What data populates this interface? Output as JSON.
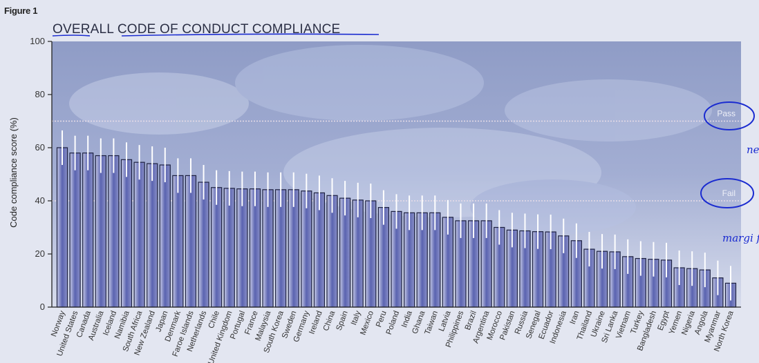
{
  "figure_label": "Figure 1",
  "title": "OVERALL CODE OF CONDUCT COMPLIANCE",
  "annotations": {
    "pass_note": "ne p",
    "fail_note": "margi fail"
  },
  "colors": {
    "bar": "#5a63b0",
    "bar_edge": "#1c2040",
    "error_bar": "#ffffff",
    "threshold_line": "#e8dde8",
    "ink": "#1a2bd0"
  },
  "chart_data": {
    "type": "bar",
    "title": "OVERALL CODE OF CONDUCT COMPLIANCE",
    "xlabel": "",
    "ylabel": "Code compliance score (%)",
    "ylim": [
      0,
      100
    ],
    "yticks": [
      0,
      20,
      40,
      60,
      80,
      100
    ],
    "grid": false,
    "error_bars": "approx ±7",
    "thresholds": [
      {
        "label": "Pass",
        "value": 70
      },
      {
        "label": "Fail",
        "value": 40
      }
    ],
    "categories": [
      "Norway",
      "United States",
      "Canada",
      "Australia",
      "Iceland",
      "Namibia",
      "South Africa",
      "New Zealand",
      "Japan",
      "Denmark",
      "Faroe Islands",
      "Netherlands",
      "Chile",
      "United Kingdom",
      "Portugal",
      "France",
      "Malaysia",
      "South Korea",
      "Sweden",
      "Germany",
      "Ireland",
      "China",
      "Spain",
      "Italy",
      "Mexico",
      "Peru",
      "Poland",
      "India",
      "Ghana",
      "Taiwan",
      "Latvia",
      "Philippines",
      "Brazil",
      "Argentina",
      "Morocco",
      "Pakistan",
      "Russia",
      "Senegal",
      "Ecuador",
      "Indonesia",
      "Iran",
      "Thailand",
      "Ukraine",
      "Sri Lanka",
      "Vietnam",
      "Turkey",
      "Bangladesh",
      "Egypt",
      "Yemen",
      "Nigeria",
      "Angola",
      "Myanmar",
      "North Korea"
    ],
    "values": [
      60,
      58,
      58,
      57,
      57,
      55.5,
      54.5,
      54,
      53.5,
      49.5,
      49.5,
      47,
      45,
      44.7,
      44.5,
      44.5,
      44.2,
      44.2,
      44.2,
      43.7,
      43,
      42,
      41,
      40.3,
      40,
      37.5,
      36,
      35.5,
      35.5,
      35.5,
      33.8,
      32.5,
      32.5,
      32.5,
      30,
      29,
      28.7,
      28.4,
      28.3,
      26.8,
      25,
      21.8,
      21,
      20.8,
      19,
      18.3,
      18,
      17.7,
      14.8,
      14.5,
      14,
      11,
      9
    ]
  }
}
